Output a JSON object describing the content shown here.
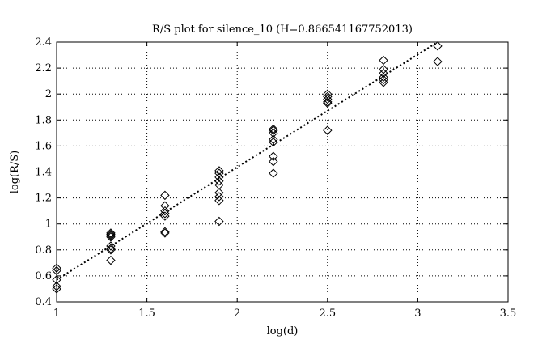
{
  "chart_data": {
    "type": "scatter",
    "title": "R/S plot for silence_10 (H=0.866541167752013)",
    "xlabel": "log(d)",
    "ylabel": "log(R/S)",
    "xlim": [
      1,
      3.5
    ],
    "ylim": [
      0.4,
      2.4
    ],
    "x_ticks": [
      "1",
      "1.5",
      "2",
      "2.5",
      "3",
      "3.5"
    ],
    "y_ticks": [
      "0.4",
      "0.6",
      "0.8",
      "1",
      "1.2",
      "1.4",
      "1.6",
      "1.8",
      "2",
      "2.2",
      "2.4"
    ],
    "grid": true,
    "legend": "none",
    "marker": "diamond",
    "points": [
      {
        "x": 1.0,
        "y": 0.66
      },
      {
        "x": 1.0,
        "y": 0.64
      },
      {
        "x": 1.0,
        "y": 0.57
      },
      {
        "x": 1.0,
        "y": 0.52
      },
      {
        "x": 1.0,
        "y": 0.5
      },
      {
        "x": 1.3,
        "y": 0.93
      },
      {
        "x": 1.3,
        "y": 0.92
      },
      {
        "x": 1.3,
        "y": 0.91
      },
      {
        "x": 1.3,
        "y": 0.9
      },
      {
        "x": 1.3,
        "y": 0.83
      },
      {
        "x": 1.3,
        "y": 0.81
      },
      {
        "x": 1.3,
        "y": 0.8
      },
      {
        "x": 1.3,
        "y": 0.72
      },
      {
        "x": 1.6,
        "y": 1.22
      },
      {
        "x": 1.6,
        "y": 1.14
      },
      {
        "x": 1.6,
        "y": 1.1
      },
      {
        "x": 1.6,
        "y": 1.08
      },
      {
        "x": 1.6,
        "y": 1.06
      },
      {
        "x": 1.6,
        "y": 0.94
      },
      {
        "x": 1.6,
        "y": 0.93
      },
      {
        "x": 1.9,
        "y": 1.41
      },
      {
        "x": 1.9,
        "y": 1.39
      },
      {
        "x": 1.9,
        "y": 1.36
      },
      {
        "x": 1.9,
        "y": 1.33
      },
      {
        "x": 1.9,
        "y": 1.3
      },
      {
        "x": 1.9,
        "y": 1.24
      },
      {
        "x": 1.9,
        "y": 1.21
      },
      {
        "x": 1.9,
        "y": 1.18
      },
      {
        "x": 1.9,
        "y": 1.02
      },
      {
        "x": 2.2,
        "y": 1.73
      },
      {
        "x": 2.2,
        "y": 1.72
      },
      {
        "x": 2.2,
        "y": 1.7
      },
      {
        "x": 2.2,
        "y": 1.65
      },
      {
        "x": 2.2,
        "y": 1.63
      },
      {
        "x": 2.2,
        "y": 1.52
      },
      {
        "x": 2.2,
        "y": 1.48
      },
      {
        "x": 2.2,
        "y": 1.39
      },
      {
        "x": 2.5,
        "y": 2.0
      },
      {
        "x": 2.5,
        "y": 1.98
      },
      {
        "x": 2.5,
        "y": 1.96
      },
      {
        "x": 2.5,
        "y": 1.94
      },
      {
        "x": 2.5,
        "y": 1.93
      },
      {
        "x": 2.5,
        "y": 1.72
      },
      {
        "x": 2.81,
        "y": 2.26
      },
      {
        "x": 2.81,
        "y": 2.19
      },
      {
        "x": 2.81,
        "y": 2.16
      },
      {
        "x": 2.81,
        "y": 2.13
      },
      {
        "x": 2.81,
        "y": 2.11
      },
      {
        "x": 2.81,
        "y": 2.09
      },
      {
        "x": 3.11,
        "y": 2.37
      },
      {
        "x": 3.11,
        "y": 2.25
      }
    ],
    "fit_line": {
      "x": [
        1.0,
        3.11
      ],
      "y": [
        0.57,
        2.4
      ],
      "style": "dotted"
    }
  }
}
